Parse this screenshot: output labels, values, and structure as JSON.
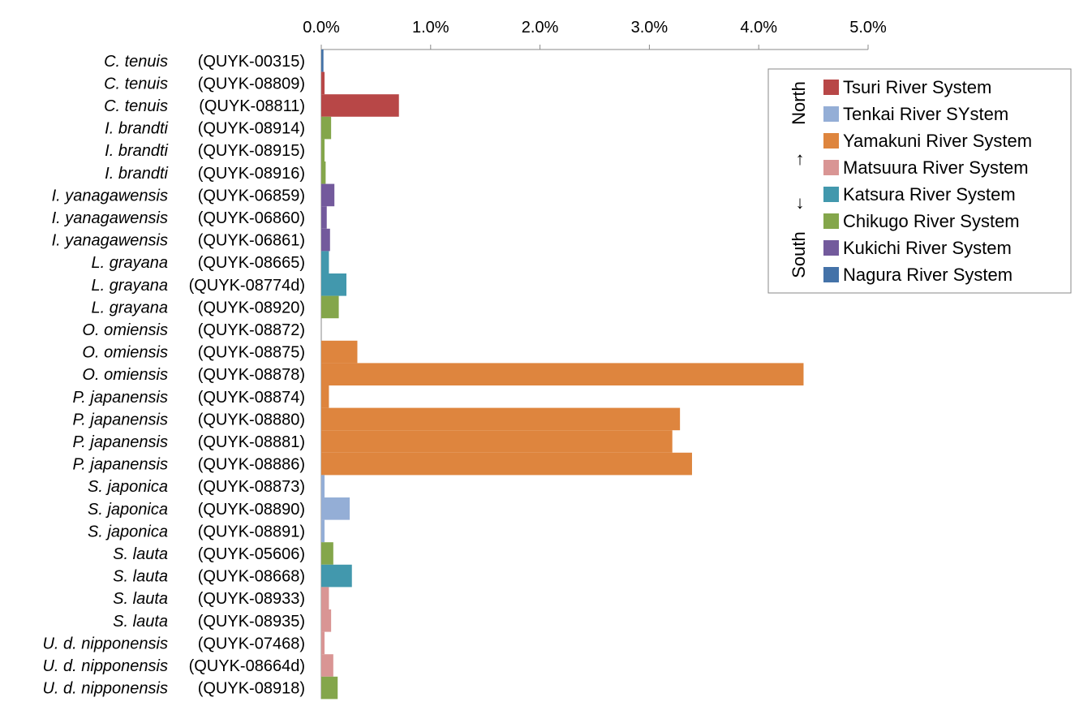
{
  "chart_data": {
    "type": "bar",
    "orientation": "horizontal",
    "xlim": [
      0,
      5.0
    ],
    "x_ticks": [
      "0.0%",
      "1.0%",
      "2.0%",
      "3.0%",
      "4.0%",
      "5.0%"
    ],
    "x_tick_values": [
      0,
      1,
      2,
      3,
      4,
      5
    ],
    "x_axis_position": "top",
    "grid": false,
    "legend_position": "top-right",
    "series": [
      {
        "name": "Tsuri River System",
        "color": "#b84747"
      },
      {
        "name": "Tenkai River SYstem",
        "color": "#94aed6"
      },
      {
        "name": "Yamakuni River System",
        "color": "#de853e"
      },
      {
        "name": "Matsuura River System",
        "color": "#d99594"
      },
      {
        "name": "Katsura River System",
        "color": "#4298ad"
      },
      {
        "name": "Chikugo River System",
        "color": "#84a64b"
      },
      {
        "name": "Kukichi River System",
        "color": "#735a9c"
      },
      {
        "name": "Nagura River System",
        "color": "#4472a8"
      }
    ],
    "legend_direction": {
      "north": "North",
      "arrow_up": "↑",
      "arrow_down": "↓",
      "south": "South"
    },
    "rows": [
      {
        "species": "C. tenuis",
        "id": "(QUYK-00315)",
        "value": 0.02,
        "series": "Nagura River System"
      },
      {
        "species": "C. tenuis",
        "id": "(QUYK-08809)",
        "value": 0.03,
        "series": "Tsuri River System"
      },
      {
        "species": "C. tenuis",
        "id": "(QUYK-08811)",
        "value": 0.71,
        "series": "Tsuri River System"
      },
      {
        "species": "I. brandti",
        "id": "(QUYK-08914)",
        "value": 0.09,
        "series": "Chikugo River System"
      },
      {
        "species": "I. brandti",
        "id": "(QUYK-08915)",
        "value": 0.03,
        "series": "Chikugo River System"
      },
      {
        "species": "I. brandti",
        "id": "(QUYK-08916)",
        "value": 0.04,
        "series": "Chikugo River System"
      },
      {
        "species": "I. yanagawensis",
        "id": "(QUYK-06859)",
        "value": 0.12,
        "series": "Kukichi River System"
      },
      {
        "species": "I. yanagawensis",
        "id": "(QUYK-06860)",
        "value": 0.05,
        "series": "Kukichi River System"
      },
      {
        "species": "I. yanagawensis",
        "id": "(QUYK-06861)",
        "value": 0.08,
        "series": "Kukichi River System"
      },
      {
        "species": "L. grayana",
        "id": "(QUYK-08665)",
        "value": 0.07,
        "series": "Katsura River System"
      },
      {
        "species": "L. grayana",
        "id": "(QUYK-08774d)",
        "value": 0.23,
        "series": "Katsura River System"
      },
      {
        "species": "L. grayana",
        "id": "(QUYK-08920)",
        "value": 0.16,
        "series": "Chikugo River System"
      },
      {
        "species": "O. omiensis",
        "id": "(QUYK-08872)",
        "value": 0.0,
        "series": "Yamakuni River System"
      },
      {
        "species": "O. omiensis",
        "id": "(QUYK-08875)",
        "value": 0.33,
        "series": "Yamakuni River System"
      },
      {
        "species": "O. omiensis",
        "id": "(QUYK-08878)",
        "value": 4.41,
        "series": "Yamakuni River System"
      },
      {
        "species": "P. japanensis",
        "id": "(QUYK-08874)",
        "value": 0.07,
        "series": "Yamakuni River System"
      },
      {
        "species": "P. japanensis",
        "id": "(QUYK-08880)",
        "value": 3.28,
        "series": "Yamakuni River System"
      },
      {
        "species": "P. japanensis",
        "id": "(QUYK-08881)",
        "value": 3.21,
        "series": "Yamakuni River System"
      },
      {
        "species": "P. japanensis",
        "id": "(QUYK-08886)",
        "value": 3.39,
        "series": "Yamakuni River System"
      },
      {
        "species": "S. japonica",
        "id": "(QUYK-08873)",
        "value": 0.03,
        "series": "Tenkai River SYstem"
      },
      {
        "species": "S. japonica",
        "id": "(QUYK-08890)",
        "value": 0.26,
        "series": "Tenkai River SYstem"
      },
      {
        "species": "S. japonica",
        "id": "(QUYK-08891)",
        "value": 0.03,
        "series": "Tenkai River SYstem"
      },
      {
        "species": "S. lauta",
        "id": "(QUYK-05606)",
        "value": 0.11,
        "series": "Chikugo River System"
      },
      {
        "species": "S. lauta",
        "id": "(QUYK-08668)",
        "value": 0.28,
        "series": "Katsura River System"
      },
      {
        "species": "S. lauta",
        "id": "(QUYK-08933)",
        "value": 0.07,
        "series": "Matsuura River System"
      },
      {
        "species": "S. lauta",
        "id": "(QUYK-08935)",
        "value": 0.09,
        "series": "Matsuura River System"
      },
      {
        "species": "U. d. nipponensis",
        "id": "(QUYK-07468)",
        "value": 0.03,
        "series": "Matsuura River System"
      },
      {
        "species": "U. d. nipponensis",
        "id": "(QUYK-08664d)",
        "value": 0.11,
        "series": "Matsuura River System"
      },
      {
        "species": "U. d. nipponensis",
        "id": "(QUYK-08918)",
        "value": 0.15,
        "series": "Chikugo River System"
      }
    ]
  }
}
